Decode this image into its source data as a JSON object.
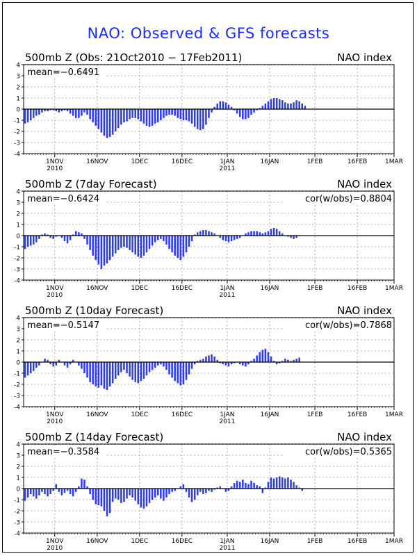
{
  "page": {
    "title": "NAO: Observed & GFS forecasts"
  },
  "colors": {
    "bar": "#2d3cf0",
    "title": "#1a2bff",
    "grid": "#9a9a9a",
    "axis": "#000000"
  },
  "chart_data": [
    {
      "type": "bar",
      "title": "500mb Z (Obs: 21Oct2010 − 17Feb2011)",
      "right_title": "NAO index",
      "mean_label": "mean=−0.6491",
      "cor_label": "",
      "ylim": [
        -4,
        4
      ],
      "yticks": [
        "4",
        "3",
        "2",
        "1",
        "0",
        "-1",
        "-2",
        "-3",
        "-4"
      ],
      "x_start_date": "2010-10-21",
      "xlim_dates": [
        "2010-10-21",
        "2011-03-01"
      ],
      "xticks": [
        {
          "label": "1NOV",
          "sub": "2010",
          "date": "2010-11-01"
        },
        {
          "label": "16NOV",
          "sub": "",
          "date": "2010-11-16"
        },
        {
          "label": "1DEC",
          "sub": "",
          "date": "2010-12-01"
        },
        {
          "label": "16DEC",
          "sub": "",
          "date": "2010-12-16"
        },
        {
          "label": "1JAN",
          "sub": "2011",
          "date": "2011-01-01"
        },
        {
          "label": "16JAN",
          "sub": "",
          "date": "2011-01-16"
        },
        {
          "label": "1FEB",
          "sub": "",
          "date": "2011-02-01"
        },
        {
          "label": "16FEB",
          "sub": "",
          "date": "2011-02-16"
        },
        {
          "label": "1MAR",
          "sub": "",
          "date": "2011-03-01"
        }
      ],
      "grid": true,
      "values": [
        -1.3,
        -1.2,
        -1.0,
        -0.8,
        -0.6,
        -0.5,
        -0.3,
        -0.2,
        -0.2,
        -0.1,
        -0.1,
        -0.2,
        -0.3,
        -0.2,
        -0.1,
        -0.2,
        -0.4,
        -0.6,
        -0.8,
        -0.8,
        -0.6,
        -0.3,
        -0.5,
        -0.9,
        -1.2,
        -1.5,
        -1.8,
        -2.1,
        -2.4,
        -2.6,
        -2.5,
        -2.3,
        -2.0,
        -1.7,
        -1.4,
        -1.2,
        -1.1,
        -0.9,
        -0.8,
        -0.8,
        -0.9,
        -1.1,
        -1.3,
        -1.5,
        -1.6,
        -1.5,
        -1.3,
        -1.2,
        -1.0,
        -0.8,
        -0.6,
        -0.5,
        -0.5,
        -0.6,
        -0.8,
        -0.9,
        -1.0,
        -1.0,
        -1.1,
        -1.3,
        -1.6,
        -1.8,
        -1.9,
        -1.8,
        -1.4,
        -0.8,
        -0.3,
        0.2,
        0.5,
        0.7,
        0.7,
        0.6,
        0.4,
        0.2,
        -0.1,
        -0.4,
        -0.7,
        -0.9,
        -0.9,
        -0.8,
        -0.5,
        -0.3,
        -0.1,
        0.1,
        0.3,
        0.5,
        0.7,
        0.9,
        1.0,
        1.0,
        0.9,
        0.8,
        0.6,
        0.5,
        0.5,
        0.6,
        0.8,
        0.7,
        0.5,
        0.3
      ]
    },
    {
      "type": "bar",
      "title": "500mb Z (7day Forecast)",
      "right_title": "NAO index",
      "mean_label": "mean=−0.6424",
      "cor_label": "cor(w/obs)=0.8804",
      "ylim": [
        -4,
        4
      ],
      "yticks": [
        "4",
        "3",
        "2",
        "1",
        "0",
        "-1",
        "-2",
        "-3",
        "-4"
      ],
      "x_start_date": "2010-10-21",
      "xlim_dates": [
        "2010-10-21",
        "2011-03-01"
      ],
      "xticks": [
        {
          "label": "1NOV",
          "sub": "2010",
          "date": "2010-11-01"
        },
        {
          "label": "16NOV",
          "sub": "",
          "date": "2010-11-16"
        },
        {
          "label": "1DEC",
          "sub": "",
          "date": "2010-12-01"
        },
        {
          "label": "16DEC",
          "sub": "",
          "date": "2010-12-16"
        },
        {
          "label": "1JAN",
          "sub": "2011",
          "date": "2011-01-01"
        },
        {
          "label": "16JAN",
          "sub": "",
          "date": "2011-01-16"
        },
        {
          "label": "1FEB",
          "sub": "",
          "date": "2011-02-01"
        },
        {
          "label": "16FEB",
          "sub": "",
          "date": "2011-02-16"
        },
        {
          "label": "1MAR",
          "sub": "",
          "date": "2011-03-01"
        }
      ],
      "grid": true,
      "values": [
        -1.2,
        -1.0,
        -0.9,
        -0.8,
        -0.6,
        -0.3,
        0.1,
        0.2,
        0.1,
        -0.2,
        -0.3,
        -0.1,
        0.0,
        -0.2,
        -0.5,
        -0.7,
        -0.4,
        0.1,
        0.4,
        0.3,
        0.2,
        -0.3,
        -0.8,
        -1.3,
        -1.8,
        -2.2,
        -2.6,
        -3.0,
        -2.7,
        -2.5,
        -2.2,
        -1.9,
        -1.6,
        -1.3,
        -1.1,
        -1.0,
        -1.1,
        -1.3,
        -1.5,
        -1.7,
        -1.9,
        -2.0,
        -1.8,
        -1.5,
        -1.2,
        -0.9,
        -0.6,
        -0.4,
        -0.3,
        -0.5,
        -0.8,
        -1.2,
        -1.5,
        -1.8,
        -2.0,
        -2.2,
        -1.9,
        -1.5,
        -1.0,
        -0.5,
        0.1,
        0.3,
        0.4,
        0.5,
        0.5,
        0.4,
        0.3,
        0.2,
        0.0,
        -0.2,
        -0.4,
        -0.5,
        -0.6,
        -0.5,
        -0.4,
        -0.3,
        -0.2,
        0.0,
        0.2,
        0.3,
        0.4,
        0.4,
        0.4,
        0.3,
        0.2,
        0.3,
        0.4,
        0.6,
        0.7,
        0.6,
        0.4,
        0.2,
        0.0,
        -0.1,
        -0.2,
        -0.3,
        -0.2,
        0.0
      ]
    },
    {
      "type": "bar",
      "title": "500mb Z (10day Forecast)",
      "right_title": "NAO index",
      "mean_label": "mean=−0.5147",
      "cor_label": "cor(w/obs)=0.7868",
      "ylim": [
        -4,
        4
      ],
      "yticks": [
        "4",
        "3",
        "2",
        "1",
        "0",
        "-1",
        "-2",
        "-3",
        "-4"
      ],
      "x_start_date": "2010-10-21",
      "xlim_dates": [
        "2010-10-21",
        "2011-03-01"
      ],
      "xticks": [
        {
          "label": "1NOV",
          "sub": "2010",
          "date": "2010-11-01"
        },
        {
          "label": "16NOV",
          "sub": "",
          "date": "2010-11-16"
        },
        {
          "label": "1DEC",
          "sub": "",
          "date": "2010-12-01"
        },
        {
          "label": "16DEC",
          "sub": "",
          "date": "2010-12-16"
        },
        {
          "label": "1JAN",
          "sub": "2011",
          "date": "2011-01-01"
        },
        {
          "label": "16JAN",
          "sub": "",
          "date": "2011-01-16"
        },
        {
          "label": "1FEB",
          "sub": "",
          "date": "2011-02-01"
        },
        {
          "label": "16FEB",
          "sub": "",
          "date": "2011-02-16"
        },
        {
          "label": "1MAR",
          "sub": "",
          "date": "2011-03-01"
        }
      ],
      "grid": true,
      "values": [
        -1.4,
        -1.2,
        -1.0,
        -0.8,
        -0.5,
        -0.3,
        0.0,
        0.3,
        0.2,
        -0.2,
        -0.4,
        -0.3,
        0.2,
        0.0,
        -0.3,
        -0.5,
        -0.2,
        0.2,
        0.0,
        -0.3,
        -0.6,
        -1.0,
        -1.4,
        -1.8,
        -2.0,
        -2.2,
        -2.3,
        -2.1,
        -2.4,
        -2.5,
        -2.2,
        -1.9,
        -1.5,
        -1.2,
        -0.9,
        -0.7,
        -1.0,
        -1.3,
        -1.6,
        -1.8,
        -1.9,
        -1.7,
        -1.5,
        -1.2,
        -0.9,
        -0.7,
        -0.5,
        -0.3,
        -0.2,
        -0.4,
        -0.7,
        -1.1,
        -1.4,
        -1.7,
        -1.9,
        -2.1,
        -2.0,
        -1.6,
        -1.1,
        -0.6,
        -0.2,
        0.1,
        0.2,
        0.3,
        0.5,
        0.6,
        0.7,
        0.5,
        0.2,
        -0.1,
        -0.2,
        -0.3,
        -0.4,
        -0.2,
        -0.1,
        0.0,
        -0.2,
        -0.3,
        -0.4,
        -0.2,
        0.1,
        0.3,
        0.6,
        0.9,
        1.1,
        1.2,
        0.9,
        0.5,
        0.1,
        -0.2,
        -0.1,
        0.1,
        0.3,
        0.2,
        0.1,
        0.2,
        0.3,
        0.4
      ]
    },
    {
      "type": "bar",
      "title": "500mb Z (14day Forecast)",
      "right_title": "NAO index",
      "mean_label": "mean=−0.3584",
      "cor_label": "cor(w/obs)=0.5365",
      "ylim": [
        -4,
        4
      ],
      "yticks": [
        "4",
        "3",
        "2",
        "1",
        "0",
        "-1",
        "-2",
        "-3",
        "-4"
      ],
      "x_start_date": "2010-10-21",
      "xlim_dates": [
        "2010-10-21",
        "2011-03-01"
      ],
      "xticks": [
        {
          "label": "1NOV",
          "sub": "2010",
          "date": "2010-11-01"
        },
        {
          "label": "16NOV",
          "sub": "",
          "date": "2010-11-16"
        },
        {
          "label": "1DEC",
          "sub": "",
          "date": "2010-12-01"
        },
        {
          "label": "16DEC",
          "sub": "",
          "date": "2010-12-16"
        },
        {
          "label": "1JAN",
          "sub": "2011",
          "date": "2011-01-01"
        },
        {
          "label": "16JAN",
          "sub": "",
          "date": "2011-01-16"
        },
        {
          "label": "1FEB",
          "sub": "",
          "date": "2011-02-01"
        },
        {
          "label": "16FEB",
          "sub": "",
          "date": "2011-02-16"
        },
        {
          "label": "1MAR",
          "sub": "",
          "date": "2011-03-01"
        }
      ],
      "grid": true,
      "values": [
        -1.1,
        -0.8,
        -0.5,
        -0.7,
        -0.9,
        -0.6,
        -0.3,
        -0.5,
        -0.7,
        -0.5,
        -0.2,
        0.4,
        -0.3,
        -0.6,
        -0.4,
        -0.2,
        -0.5,
        -0.7,
        -0.3,
        0.2,
        0.9,
        0.8,
        0.2,
        -0.5,
        -1.0,
        -1.4,
        -1.5,
        -1.6,
        -2.0,
        -2.5,
        -2.2,
        -1.2,
        -0.9,
        -1.0,
        -1.3,
        -1.2,
        -0.9,
        -0.6,
        -0.8,
        -1.1,
        -1.4,
        -1.7,
        -1.8,
        -1.6,
        -1.3,
        -1.0,
        -0.8,
        -0.6,
        -0.9,
        -1.1,
        -0.8,
        -0.5,
        -0.3,
        -0.2,
        0.0,
        0.2,
        0.4,
        -0.3,
        -0.8,
        -1.2,
        -1.0,
        -0.6,
        -0.3,
        -0.5,
        -0.4,
        -0.2,
        -0.3,
        -0.1,
        0.1,
        0.2,
        0.0,
        -0.3,
        -0.2,
        0.2,
        0.5,
        0.7,
        0.6,
        0.8,
        0.5,
        0.4,
        0.7,
        0.5,
        0.3,
        0.2,
        -0.4,
        0.1,
        0.6,
        1.0,
        0.9,
        1.0,
        1.1,
        1.0,
        0.9,
        1.0,
        0.8,
        0.6,
        0.3,
        0.1,
        -0.2
      ]
    }
  ]
}
